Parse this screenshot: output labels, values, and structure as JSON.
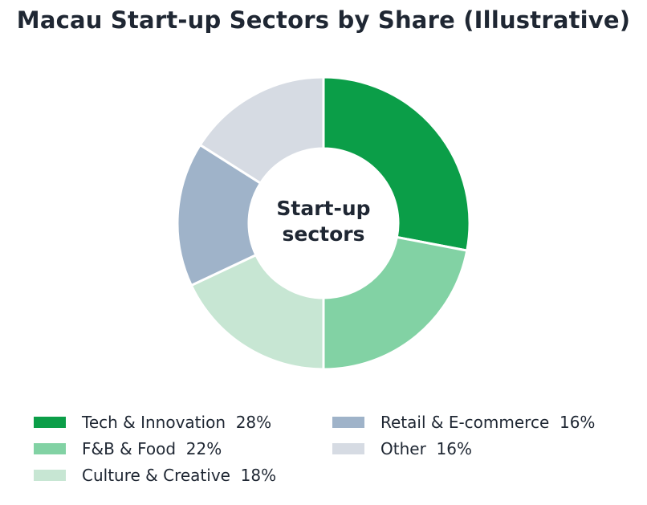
{
  "chart_data": {
    "type": "pie",
    "title": "Macau Start-up Sectors by Share (Illustrative)",
    "center_label": [
      "Start-up",
      "sectors"
    ],
    "slices": [
      {
        "label": "Tech & Innovation",
        "value": 28,
        "value_label": "28%",
        "color": "#0b9e48"
      },
      {
        "label": "F&B & Food",
        "value": 22,
        "value_label": "22%",
        "color": "#82d2a4"
      },
      {
        "label": "Culture & Creative",
        "value": 18,
        "value_label": "18%",
        "color": "#c7e6d3"
      },
      {
        "label": "Retail & E-commerce",
        "value": 16,
        "value_label": "16%",
        "color": "#9fb3c9"
      },
      {
        "label": "Other",
        "value": 16,
        "value_label": "16%",
        "color": "#d6dbe3"
      }
    ],
    "legend_position": "bottom"
  }
}
